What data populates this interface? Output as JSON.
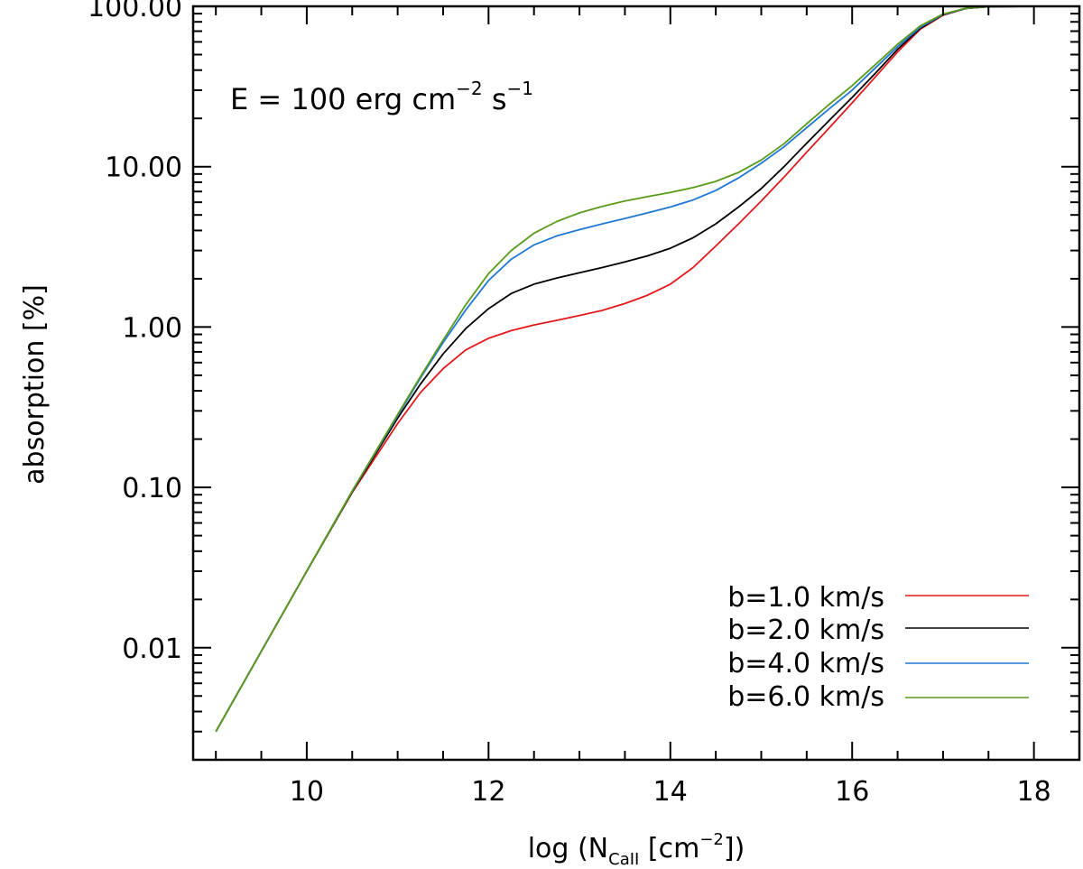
{
  "chart_data": {
    "type": "line",
    "title": "",
    "xlabel": {
      "prefix": "log (N",
      "sub": "CaII",
      "mid": " [cm",
      "sup": "−2",
      "suffix": "])"
    },
    "ylabel": "absorption [%]",
    "xlim": [
      8.75,
      18.5
    ],
    "ylim": [
      0.002,
      100
    ],
    "yscale": "log",
    "x_ticks": [
      10,
      12,
      14,
      16,
      18
    ],
    "x_tick_labels": [
      "10",
      "12",
      "14",
      "16",
      "18"
    ],
    "x_minor_step": 0.5,
    "y_ticks": [
      100,
      10,
      1,
      0.1,
      0.01
    ],
    "y_tick_labels": [
      "100.00",
      "10.00",
      "1.00",
      "0.10",
      "0.01"
    ],
    "reference_line": {
      "y": 100,
      "style": "dashed"
    },
    "annotation": {
      "text": "E = 100 erg cm",
      "sup1": "−2",
      "mid": " s",
      "sup2": "−1"
    },
    "legend_position": "bottom-right",
    "x": [
      9.0,
      9.5,
      10.0,
      10.5,
      11.0,
      11.25,
      11.5,
      11.75,
      12.0,
      12.25,
      12.5,
      12.75,
      13.0,
      13.25,
      13.5,
      13.75,
      14.0,
      14.25,
      14.5,
      14.75,
      15.0,
      15.25,
      15.5,
      15.75,
      16.0,
      16.25,
      16.5,
      16.75,
      17.0,
      17.25,
      17.5,
      18.0,
      18.5
    ],
    "series": [
      {
        "name": "b=1.0 km/s",
        "color": "#e31a1c",
        "values": [
          0.003,
          0.0095,
          0.03,
          0.093,
          0.25,
          0.39,
          0.55,
          0.72,
          0.85,
          0.95,
          1.03,
          1.1,
          1.18,
          1.27,
          1.4,
          1.58,
          1.85,
          2.35,
          3.2,
          4.4,
          6.1,
          8.6,
          12.3,
          17.5,
          25.0,
          36.0,
          52.0,
          72.0,
          88.0,
          97.0,
          99.6,
          100.0,
          100.0
        ]
      },
      {
        "name": "b=2.0 km/s",
        "color": "#000000",
        "values": [
          0.003,
          0.0095,
          0.03,
          0.094,
          0.27,
          0.44,
          0.68,
          0.98,
          1.3,
          1.62,
          1.85,
          2.02,
          2.18,
          2.35,
          2.55,
          2.78,
          3.1,
          3.6,
          4.4,
          5.6,
          7.3,
          10.0,
          14.0,
          19.5,
          27.0,
          38.0,
          54.0,
          73.0,
          88.5,
          97.0,
          99.6,
          100.0,
          100.0
        ]
      },
      {
        "name": "b=4.0 km/s",
        "color": "#1f78d4",
        "values": [
          0.003,
          0.0095,
          0.03,
          0.095,
          0.28,
          0.48,
          0.8,
          1.28,
          1.95,
          2.65,
          3.25,
          3.7,
          4.05,
          4.4,
          4.75,
          5.15,
          5.6,
          6.2,
          7.1,
          8.5,
          10.5,
          13.3,
          17.5,
          23.0,
          30.0,
          41.0,
          56.0,
          74.0,
          89.0,
          97.2,
          99.6,
          100.0,
          100.0
        ]
      },
      {
        "name": "b=6.0 km/s",
        "color": "#5a9a1a",
        "values": [
          0.003,
          0.0095,
          0.03,
          0.095,
          0.285,
          0.49,
          0.83,
          1.38,
          2.15,
          3.0,
          3.85,
          4.55,
          5.15,
          5.65,
          6.1,
          6.5,
          6.9,
          7.4,
          8.1,
          9.2,
          11.0,
          13.9,
          18.5,
          24.5,
          32.0,
          43.0,
          58.0,
          75.5,
          89.5,
          97.3,
          99.6,
          100.0,
          100.0
        ]
      }
    ]
  }
}
